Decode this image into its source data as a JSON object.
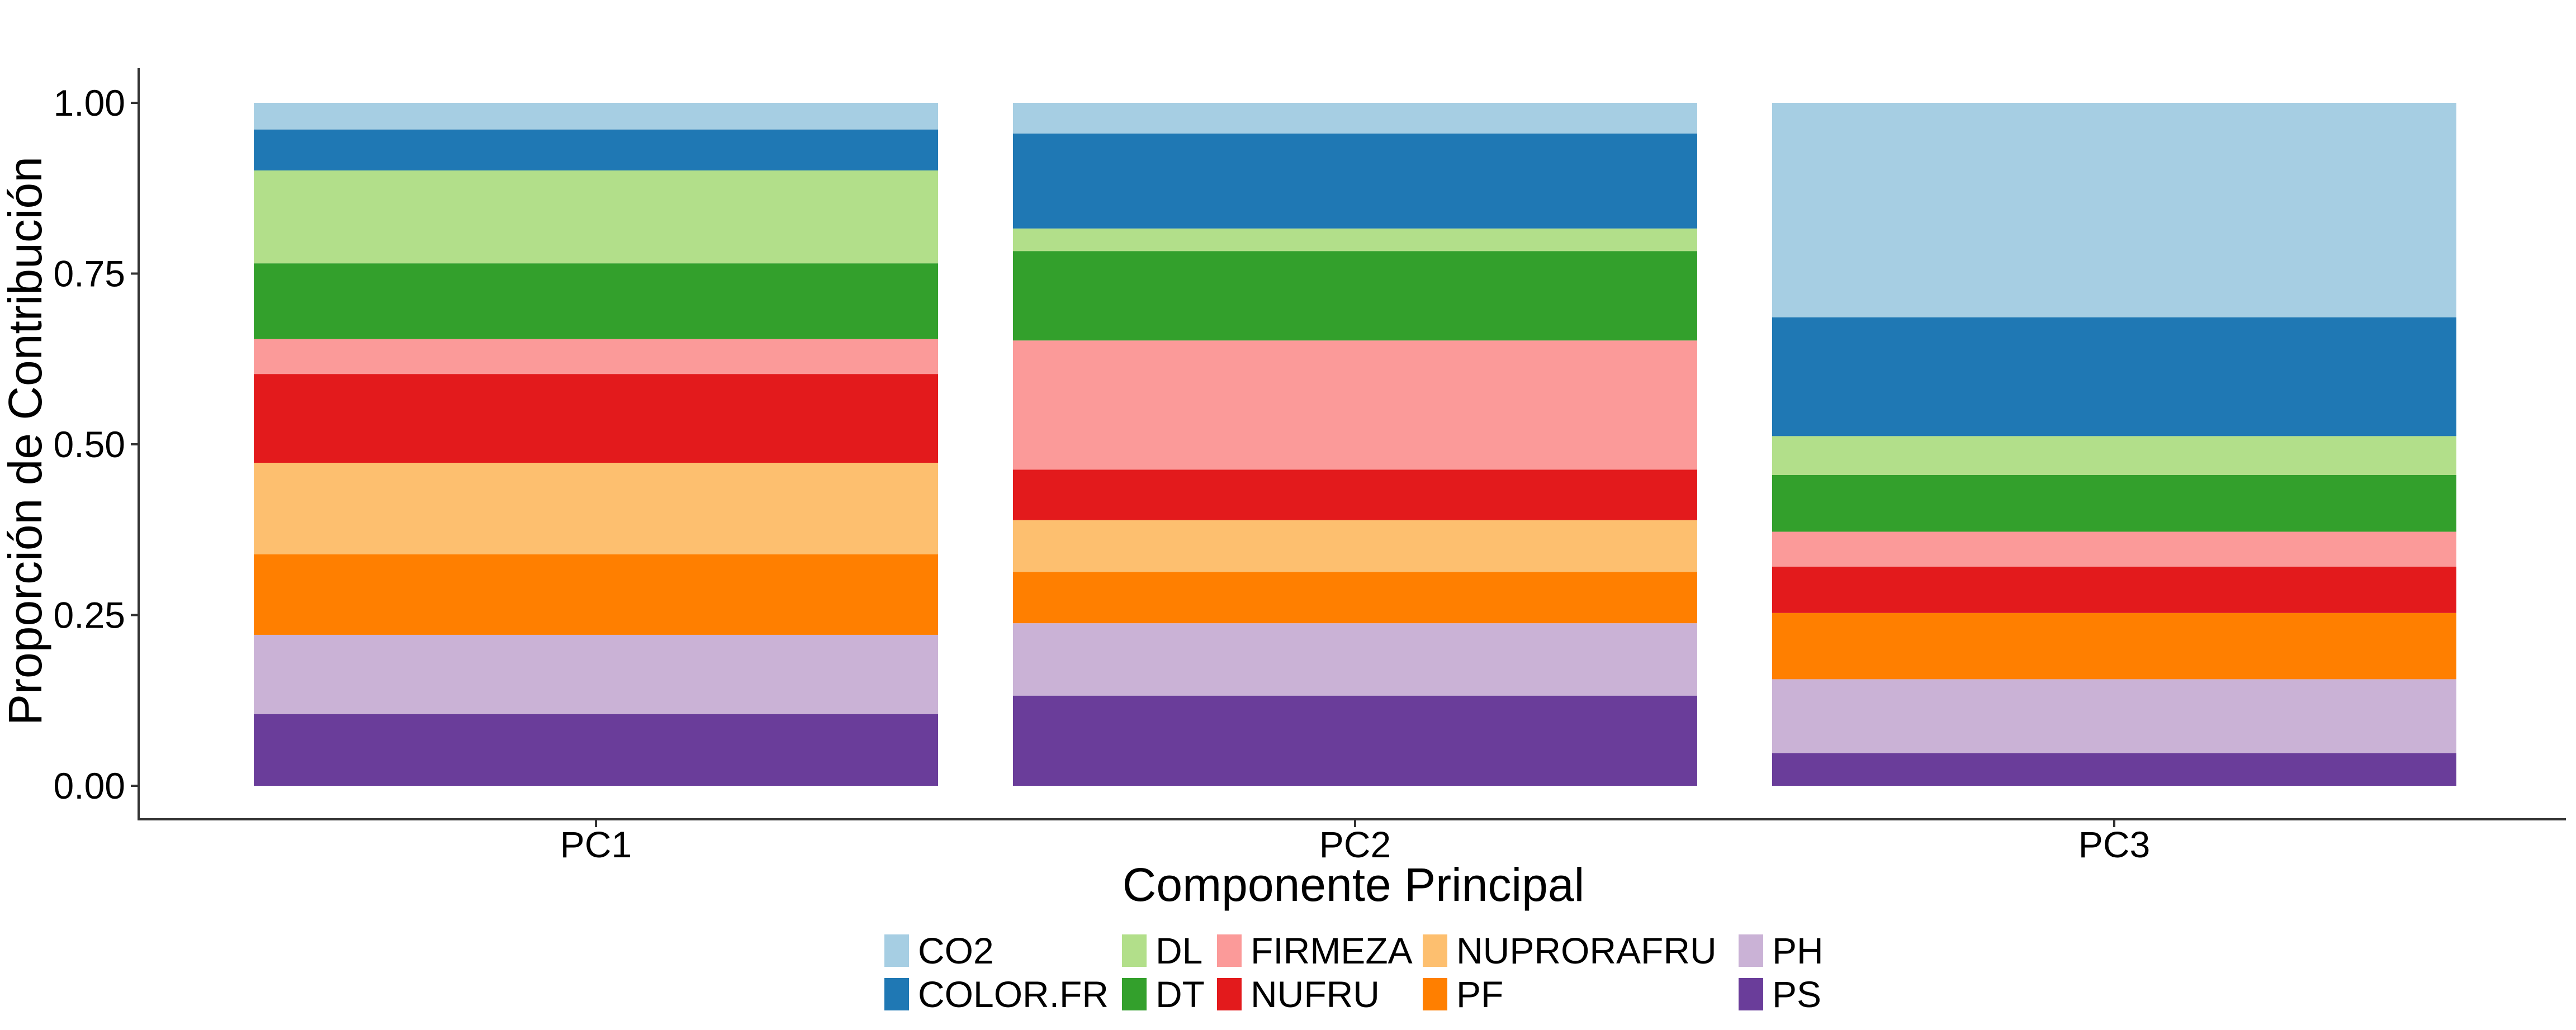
{
  "chart_data": {
    "type": "bar",
    "stacked": true,
    "title": "",
    "xlabel": "Componente Principal",
    "ylabel": "Proporción de Contribución",
    "categories": [
      "PC1",
      "PC2",
      "PC3"
    ],
    "ylim": [
      0,
      1
    ],
    "yticks": [
      "0.00",
      "0.25",
      "0.50",
      "0.75",
      "1.00"
    ],
    "grid": false,
    "legend_position": "bottom",
    "series": [
      {
        "name": "PS",
        "color": "#6A3D9A",
        "values": [
          0.105,
          0.132,
          0.048
        ]
      },
      {
        "name": "PH",
        "color": "#CAB2D6",
        "values": [
          0.116,
          0.106,
          0.108
        ]
      },
      {
        "name": "PF",
        "color": "#FF7F00",
        "values": [
          0.118,
          0.075,
          0.097
        ]
      },
      {
        "name": "NUPRORAFRU",
        "color": "#FDBF6F",
        "values": [
          0.134,
          0.076,
          0.0
        ]
      },
      {
        "name": "NUFRU",
        "color": "#E31A1C",
        "values": [
          0.13,
          0.074,
          0.068
        ]
      },
      {
        "name": "FIRMEZA",
        "color": "#FB9A99",
        "values": [
          0.051,
          0.189,
          0.051
        ]
      },
      {
        "name": "DT",
        "color": "#33A02C",
        "values": [
          0.111,
          0.131,
          0.083
        ]
      },
      {
        "name": "DL",
        "color": "#B2DF8A",
        "values": [
          0.136,
          0.033,
          0.057
        ]
      },
      {
        "name": "COLOR.FR",
        "color": "#1F78B4",
        "values": [
          0.06,
          0.139,
          0.174
        ]
      },
      {
        "name": "CO2",
        "color": "#A6CEE3",
        "values": [
          0.039,
          0.045,
          0.314
        ]
      }
    ],
    "legend_order": [
      "CO2",
      "COLOR.FR",
      "DL",
      "DT",
      "FIRMEZA",
      "NUFRU",
      "NUPRORAFRU",
      "PF",
      "PH",
      "PS"
    ]
  }
}
